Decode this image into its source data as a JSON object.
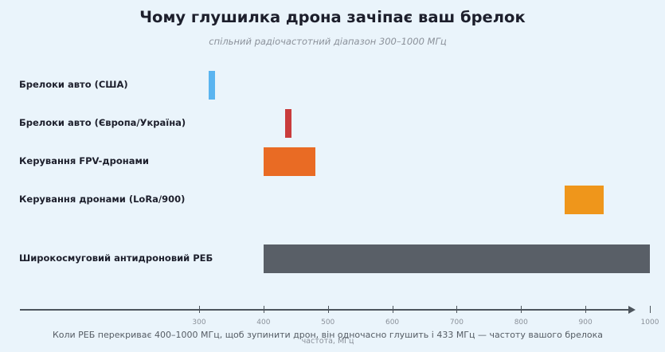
{
  "chart_data": {
    "type": "bar",
    "orientation": "horizontal-range",
    "title": "Чому глушилка дрона зачіпає ваш брелок",
    "subtitle": "спільний радіочастотний діапазон 300–1000 МГц",
    "xlabel": "частота, МГц",
    "caption": "Коли РЕБ перекриває 400–1000 МГц, щоб зупинити дрон, він одночасно глушить і 433 МГц — частоту вашого брелока",
    "xlim": [
      300,
      1000
    ],
    "xticks": [
      "300",
      "400",
      "500",
      "600",
      "700",
      "800",
      "900",
      "1000"
    ],
    "grid": false,
    "legend": "none",
    "categories": [
      "Брелоки авто (США)",
      "Брелоки авто (Європа/Україна)",
      "Керування FPV-дронами",
      "Керування дронами (LoRa/900)",
      "Широкосмуговий антидроновий РЕБ"
    ],
    "ranges": [
      {
        "start": 315,
        "end": 325,
        "color": "#5ab4f0"
      },
      {
        "start": 433,
        "end": 443,
        "color": "#c93c3c"
      },
      {
        "start": 400,
        "end": 480,
        "color": "#e96b24"
      },
      {
        "start": 868,
        "end": 928,
        "color": "#ef961b"
      },
      {
        "start": 400,
        "end": 1000,
        "color": "#595f67"
      }
    ]
  }
}
